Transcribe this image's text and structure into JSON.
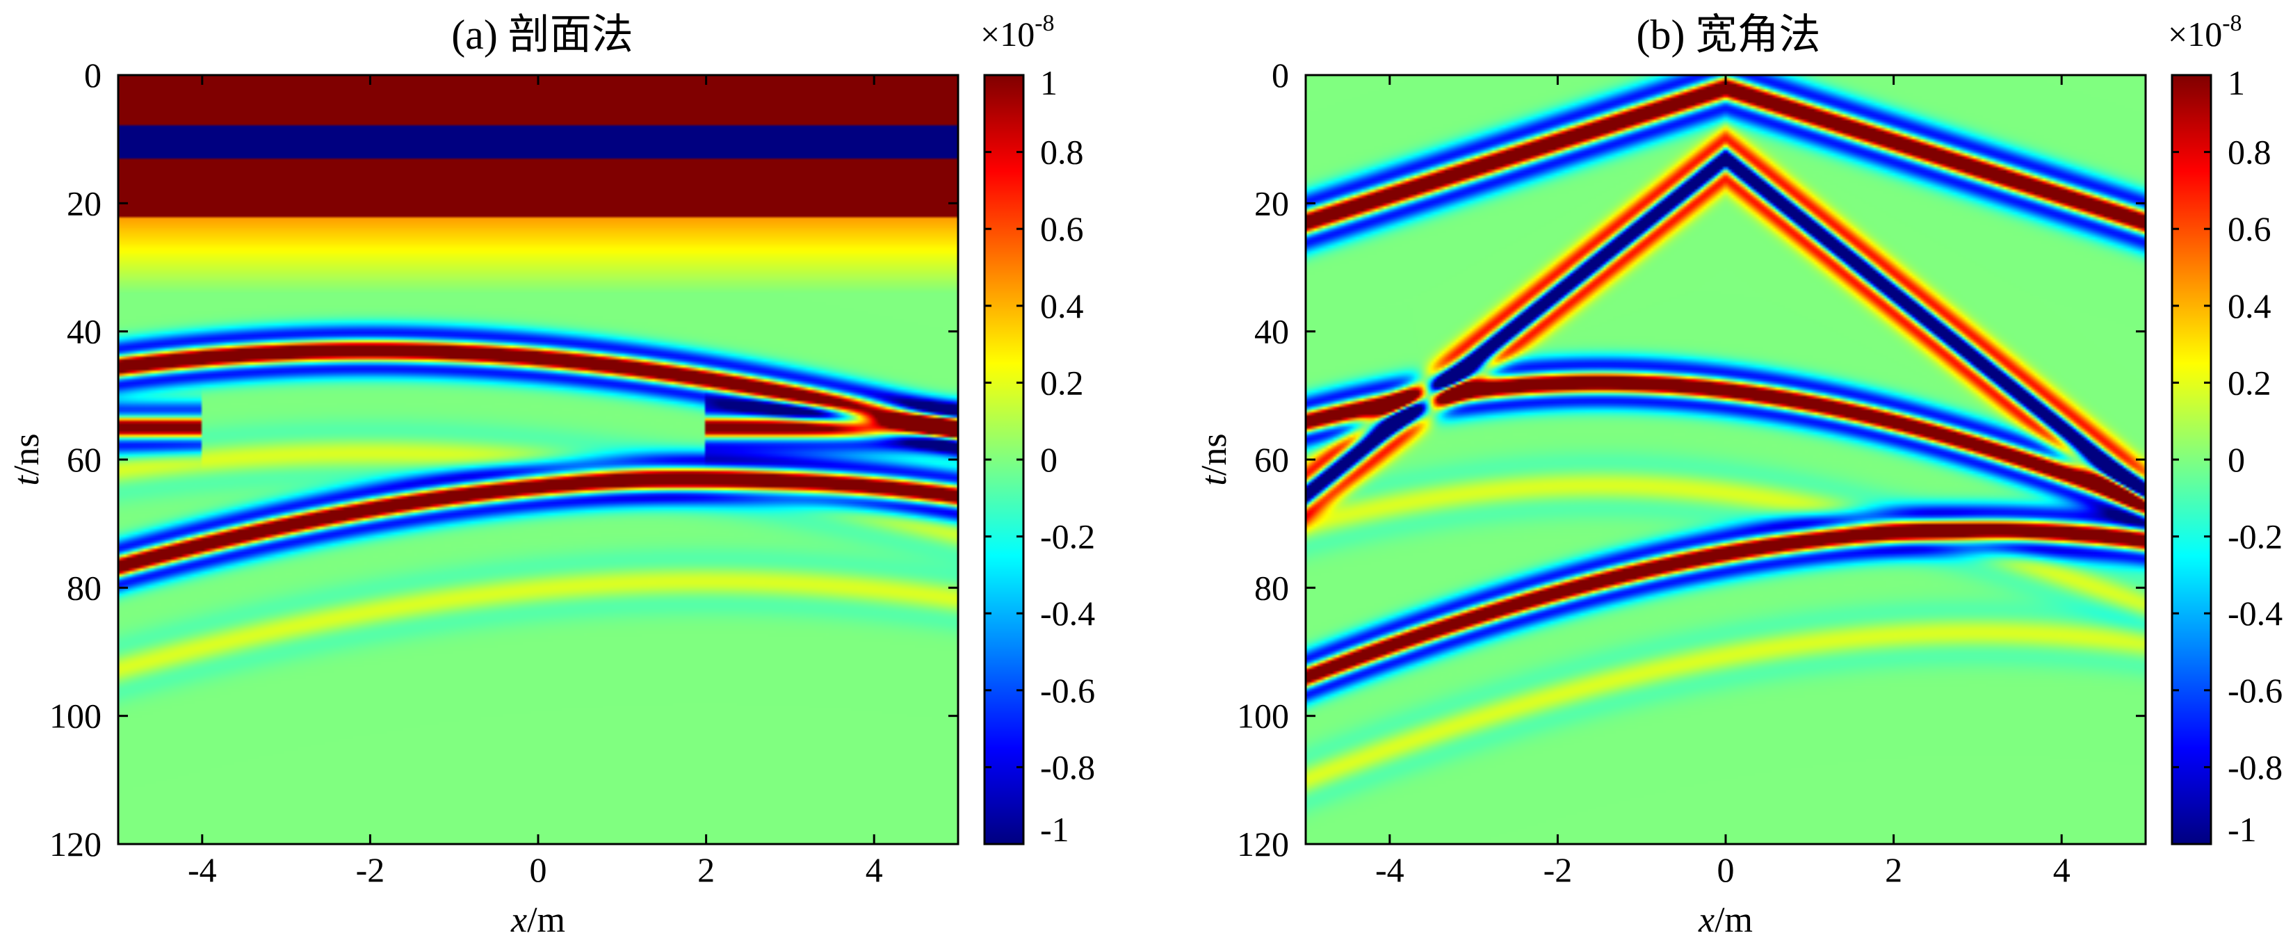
{
  "chart_data": [
    {
      "type": "heatmap",
      "title": "(a) 剖面法",
      "xlabel_italic": "x",
      "xlabel_unit": "/m",
      "ylabel_italic": "t",
      "ylabel_unit": "/ns",
      "xlim": [
        -5,
        5
      ],
      "ylim": [
        0,
        120
      ],
      "y_reversed": true,
      "x_ticks": [
        "-4",
        "-2",
        "0",
        "2",
        "4"
      ],
      "x_tick_values": [
        -4,
        -2,
        0,
        2,
        4
      ],
      "y_ticks": [
        "0",
        "20",
        "40",
        "60",
        "80",
        "100",
        "120"
      ],
      "y_tick_values": [
        0,
        20,
        40,
        60,
        80,
        100,
        120
      ],
      "colorbar": {
        "range": [
          -1,
          1
        ],
        "multiplier_base": "×10",
        "multiplier_exp": "-8",
        "ticks": [
          "1",
          "0.8",
          "0.6",
          "0.4",
          "0.2",
          "0",
          "-0.2",
          "-0.4",
          "-0.6",
          "-0.8",
          "-1"
        ],
        "tick_values": [
          1,
          0.8,
          0.6,
          0.4,
          0.2,
          0,
          -0.2,
          -0.4,
          -0.6,
          -0.8,
          -1
        ],
        "colormap": "jet"
      },
      "features": [
        {
          "kind": "band",
          "t_top": 0,
          "t_bottom": 8,
          "value": 1
        },
        {
          "kind": "band",
          "t_top": 8,
          "t_bottom": 13,
          "value": -1
        },
        {
          "kind": "band",
          "t_top": 13,
          "t_bottom": 22,
          "value": 1
        },
        {
          "kind": "hyperbola",
          "x0": -2,
          "t0": 43,
          "v": 0.2,
          "polarity": 1
        },
        {
          "kind": "hyperbola",
          "x0": 2,
          "t0": 63,
          "v": 0.16,
          "polarity": 1
        },
        {
          "kind": "segment",
          "t": 55,
          "x_from": -5,
          "x_to": -4,
          "value": 1
        },
        {
          "kind": "segment",
          "t": 55,
          "x_from": 2,
          "x_to": 5,
          "value": 1
        }
      ]
    },
    {
      "type": "heatmap",
      "title": "(b) 宽角法",
      "xlabel_italic": "x",
      "xlabel_unit": "/m",
      "ylabel_italic": "t",
      "ylabel_unit": "/ns",
      "xlim": [
        -5,
        5
      ],
      "ylim": [
        0,
        120
      ],
      "y_reversed": true,
      "x_ticks": [
        "-4",
        "-2",
        "0",
        "2",
        "4"
      ],
      "x_tick_values": [
        -4,
        -2,
        0,
        2,
        4
      ],
      "y_ticks": [
        "0",
        "20",
        "40",
        "60",
        "80",
        "100",
        "120"
      ],
      "y_tick_values": [
        0,
        20,
        40,
        60,
        80,
        100,
        120
      ],
      "colorbar": {
        "range": [
          -1,
          1
        ],
        "multiplier_base": "×10",
        "multiplier_exp": "-8",
        "ticks": [
          "1",
          "0.8",
          "0.6",
          "0.4",
          "0.2",
          "0",
          "-0.2",
          "-0.4",
          "-0.6",
          "-0.8",
          "-1"
        ],
        "tick_values": [
          1,
          0.8,
          0.6,
          0.4,
          0.2,
          0,
          -0.2,
          -0.4,
          -0.6,
          -0.8,
          -1
        ],
        "colormap": "jet"
      },
      "features": [
        {
          "kind": "direct_wave",
          "x0": 0,
          "t0": 2,
          "slope_ns_per_m": 4.2,
          "value": 1
        },
        {
          "kind": "direct_wave",
          "x0": 0,
          "t0": 13,
          "slope_ns_per_m": 10.5,
          "value": -1
        },
        {
          "kind": "hyperbola",
          "x0": -1.5,
          "t0": 48,
          "v": 0.14,
          "polarity": 1
        },
        {
          "kind": "hyperbola",
          "x0": 3,
          "t0": 71,
          "v": 0.13,
          "polarity": 1
        }
      ]
    }
  ]
}
